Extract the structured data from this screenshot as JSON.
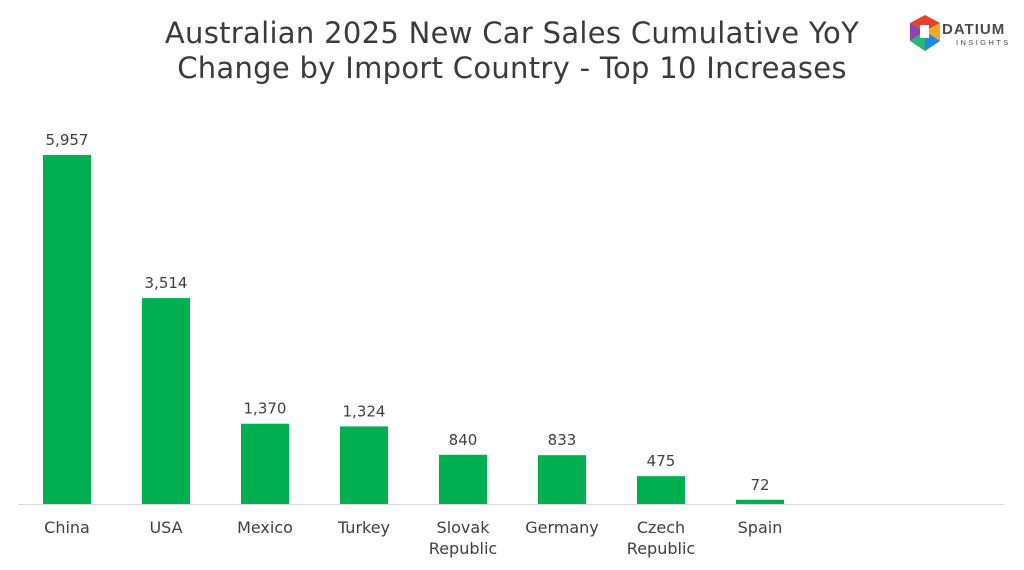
{
  "title_line1": "Australian 2025 New Car Sales Cumulative YoY",
  "title_line2": "Change by Import Country - Top 10 Increases",
  "logo": {
    "name": "DATIUM",
    "sub": "INSIGHTS",
    "colors": [
      "#e8412c",
      "#f7a823",
      "#1e88e5",
      "#2bb673",
      "#8e44ad"
    ]
  },
  "chart_data": {
    "type": "bar",
    "title": "Australian 2025 New Car Sales Cumulative YoY Change by Import Country - Top 10 Increases",
    "categories": [
      [
        "China"
      ],
      [
        "USA"
      ],
      [
        "Mexico"
      ],
      [
        "Turkey"
      ],
      [
        "Slovak",
        "Republic"
      ],
      [
        "Germany"
      ],
      [
        "Czech",
        "Republic"
      ],
      [
        "Spain"
      ]
    ],
    "values": [
      5957,
      3514,
      1370,
      1324,
      840,
      833,
      475,
      72
    ],
    "value_labels": [
      "5,957",
      "3,514",
      "1,370",
      "1,324",
      "840",
      "833",
      "475",
      "72"
    ],
    "xlabel": "",
    "ylabel": "",
    "ylim": [
      0,
      6400
    ],
    "grid": false,
    "legend": "none",
    "bar_color": "#00b050",
    "axis_color": "#d9d9d9"
  }
}
